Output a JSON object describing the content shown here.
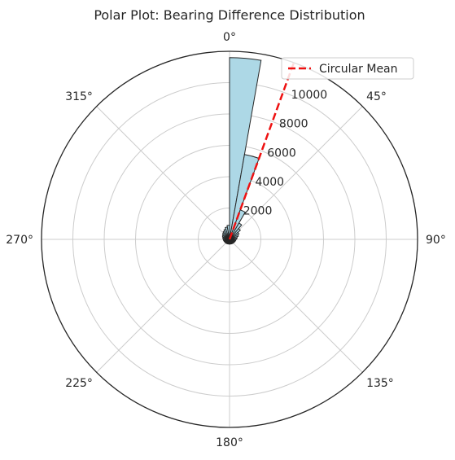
{
  "chart_data": {
    "type": "bar",
    "subtype": "polar-histogram",
    "title": "Polar Plot: Bearing Difference Distribution",
    "theta_direction": "clockwise",
    "theta_zero": "N",
    "angle_ticks": [
      {
        "deg": 0,
        "label": "0°"
      },
      {
        "deg": 45,
        "label": "45°"
      },
      {
        "deg": 90,
        "label": "90°"
      },
      {
        "deg": 135,
        "label": "135°"
      },
      {
        "deg": 180,
        "label": "180°"
      },
      {
        "deg": 225,
        "label": "225°"
      },
      {
        "deg": 270,
        "label": "270°"
      },
      {
        "deg": 315,
        "label": "315°"
      }
    ],
    "radial_ticks": [
      {
        "value": 2000,
        "label": "2000"
      },
      {
        "value": 4000,
        "label": "4000"
      },
      {
        "value": 6000,
        "label": "6000"
      },
      {
        "value": 8000,
        "label": "8000"
      },
      {
        "value": 10000,
        "label": "10000"
      }
    ],
    "rlim": [
      0,
      12000
    ],
    "bin_width_deg": 10,
    "bins": [
      {
        "start_deg": 0,
        "value": 11600
      },
      {
        "start_deg": 10,
        "value": 5500
      },
      {
        "start_deg": 20,
        "value": 2000
      },
      {
        "start_deg": 30,
        "value": 1200
      },
      {
        "start_deg": 40,
        "value": 900
      },
      {
        "start_deg": 50,
        "value": 700
      },
      {
        "start_deg": 60,
        "value": 600
      },
      {
        "start_deg": 70,
        "value": 500
      },
      {
        "start_deg": 80,
        "value": 450
      },
      {
        "start_deg": 90,
        "value": 400
      },
      {
        "start_deg": 100,
        "value": 380
      },
      {
        "start_deg": 110,
        "value": 360
      },
      {
        "start_deg": 120,
        "value": 340
      },
      {
        "start_deg": 130,
        "value": 330
      },
      {
        "start_deg": 140,
        "value": 320
      },
      {
        "start_deg": 150,
        "value": 310
      },
      {
        "start_deg": 160,
        "value": 300
      },
      {
        "start_deg": 170,
        "value": 300
      },
      {
        "start_deg": 180,
        "value": 300
      },
      {
        "start_deg": 190,
        "value": 300
      },
      {
        "start_deg": 200,
        "value": 310
      },
      {
        "start_deg": 210,
        "value": 320
      },
      {
        "start_deg": 220,
        "value": 330
      },
      {
        "start_deg": 230,
        "value": 340
      },
      {
        "start_deg": 240,
        "value": 350
      },
      {
        "start_deg": 250,
        "value": 370
      },
      {
        "start_deg": 260,
        "value": 390
      },
      {
        "start_deg": 270,
        "value": 410
      },
      {
        "start_deg": 280,
        "value": 440
      },
      {
        "start_deg": 290,
        "value": 480
      },
      {
        "start_deg": 300,
        "value": 520
      },
      {
        "start_deg": 310,
        "value": 570
      },
      {
        "start_deg": 320,
        "value": 630
      },
      {
        "start_deg": 330,
        "value": 700
      },
      {
        "start_deg": 340,
        "value": 800
      },
      {
        "start_deg": 350,
        "value": 900
      }
    ],
    "mean_line": {
      "label": "Circular Mean",
      "angle_deg": 20,
      "value": 12000
    },
    "grid": true,
    "legend": {
      "placement": "top-right",
      "entries": [
        "Circular Mean"
      ]
    },
    "colors": {
      "bar_fill": "#add8e6",
      "bar_edge": "#262626",
      "mean_line": "#ee1111",
      "grid": "#cccccc",
      "spine": "#262626"
    }
  }
}
